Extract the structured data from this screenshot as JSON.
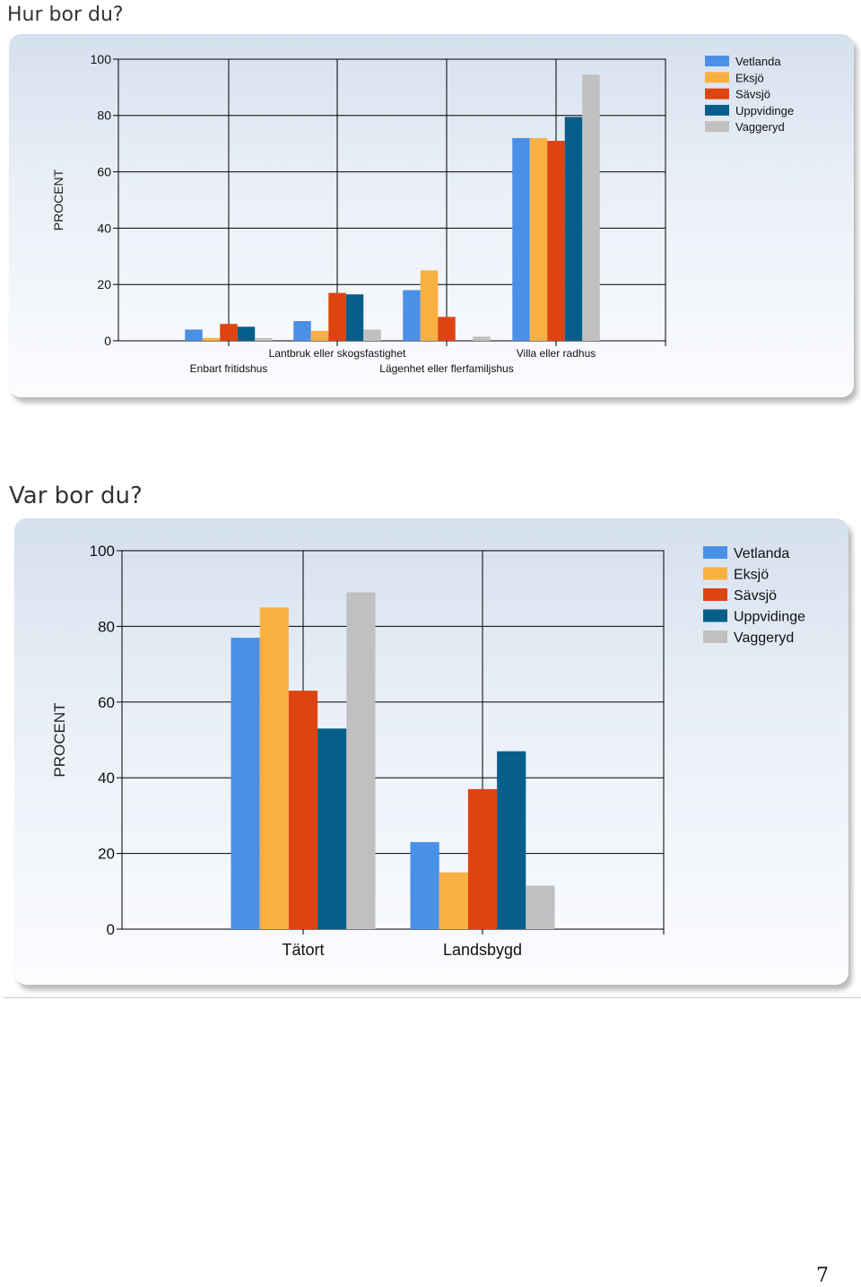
{
  "page": {
    "heading_1": "Hur bor du?",
    "heading_2": "Var bor du?",
    "page_number": "7"
  },
  "chart_data": [
    {
      "type": "bar",
      "title": "",
      "xlabel": "",
      "ylabel": "PROCENT",
      "ylim": [
        0,
        100
      ],
      "yticks": [
        0,
        20,
        40,
        60,
        80,
        100
      ],
      "grid": true,
      "legend_position": "top-right",
      "categories": [
        "Enbart fritidshus",
        "Lantbruk eller skogsfastighet",
        "Lägenhet eller flerfamiljshus",
        "Villa eller radhus"
      ],
      "series": [
        {
          "name": "Vetlanda",
          "color": "#4a90e6",
          "values": [
            4,
            7,
            18,
            72
          ]
        },
        {
          "name": "Eksjö",
          "color": "#f9b042",
          "values": [
            1,
            3.5,
            25,
            72
          ]
        },
        {
          "name": "Sävsjö",
          "color": "#de4410",
          "values": [
            6,
            17,
            8.5,
            71
          ]
        },
        {
          "name": "Uppvidinge",
          "color": "#065f8a",
          "values": [
            5,
            16.5,
            0,
            79.5
          ]
        },
        {
          "name": "Vaggeryd",
          "color": "#c0c0c0",
          "values": [
            1,
            4,
            1.5,
            94.5
          ]
        }
      ]
    },
    {
      "type": "bar",
      "title": "",
      "xlabel": "",
      "ylabel": "PROCENT",
      "ylim": [
        0,
        100
      ],
      "yticks": [
        0,
        20,
        40,
        60,
        80,
        100
      ],
      "grid": true,
      "legend_position": "top-right",
      "categories": [
        "Tätort",
        "Landsbygd"
      ],
      "series": [
        {
          "name": "Vetlanda",
          "color": "#4a90e6",
          "values": [
            77,
            23
          ]
        },
        {
          "name": "Eksjö",
          "color": "#f9b042",
          "values": [
            85,
            15
          ]
        },
        {
          "name": "Sävsjö",
          "color": "#de4410",
          "values": [
            63,
            37
          ]
        },
        {
          "name": "Uppvidinge",
          "color": "#065f8a",
          "values": [
            53,
            47
          ]
        },
        {
          "name": "Vaggeryd",
          "color": "#c0c0c0",
          "values": [
            89,
            11.5
          ]
        }
      ]
    }
  ]
}
